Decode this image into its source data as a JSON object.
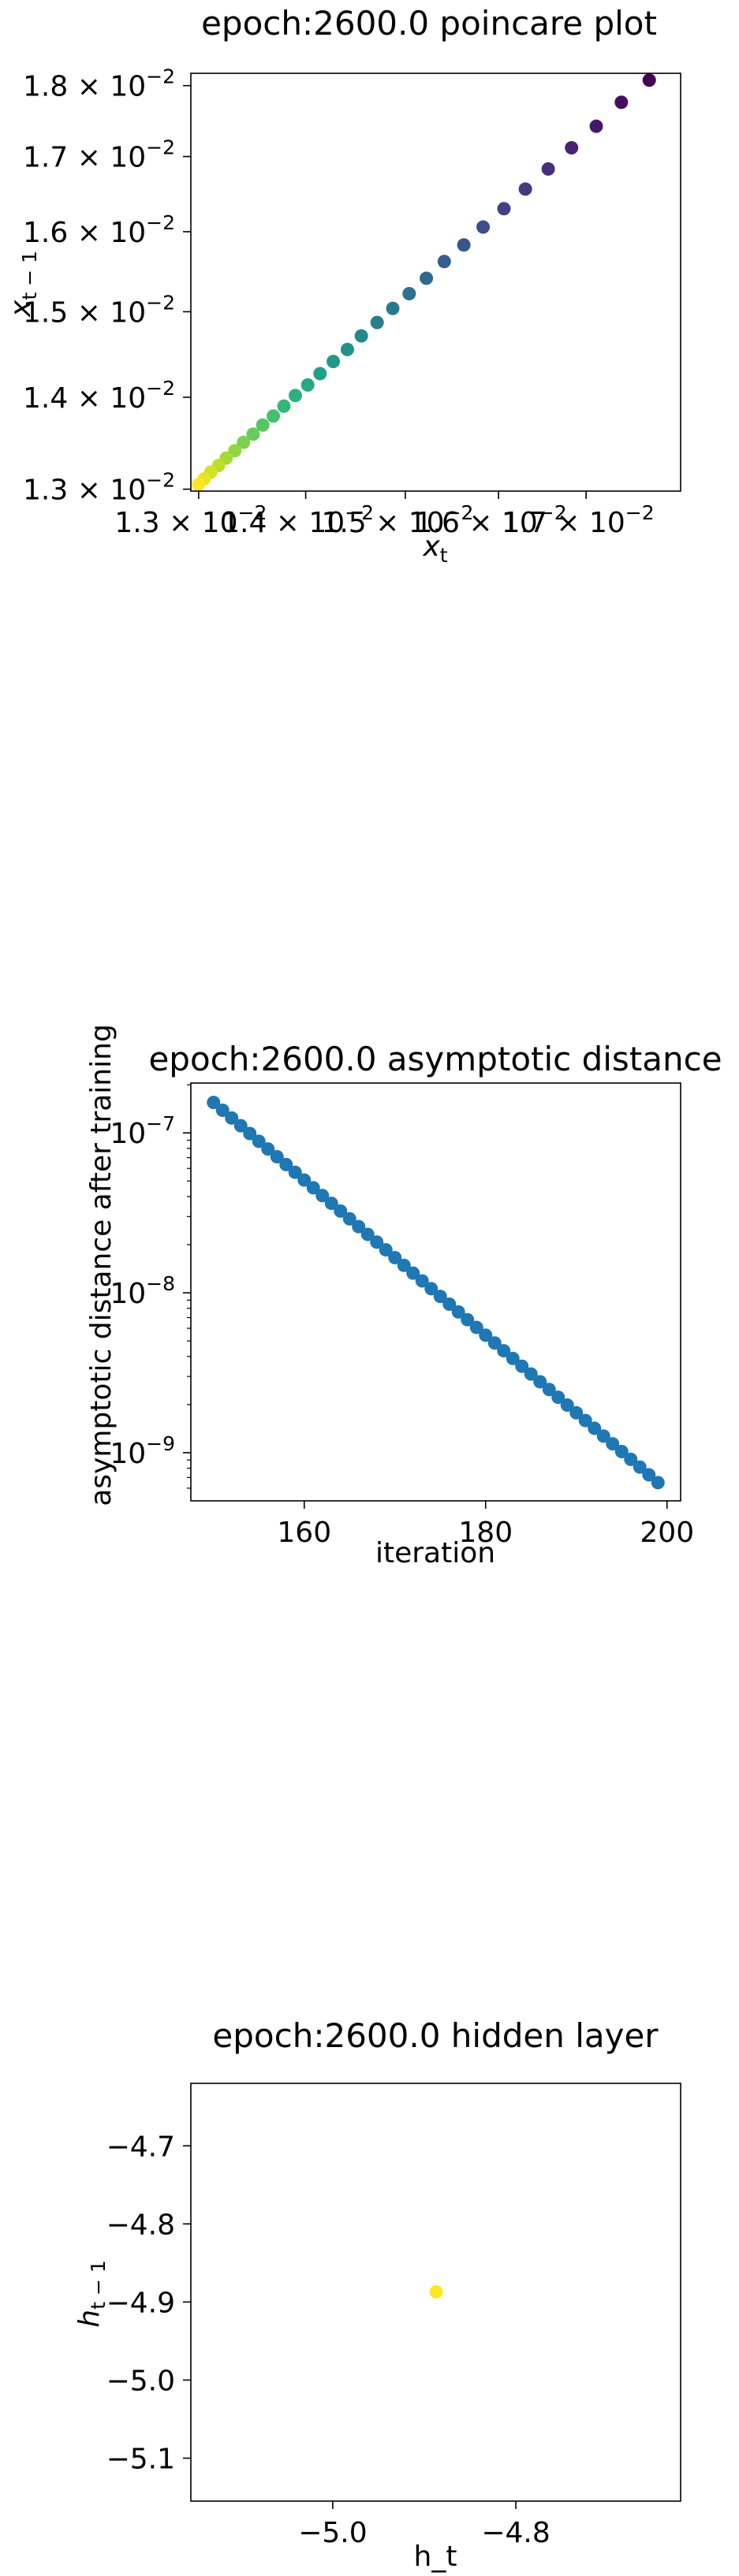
{
  "chart_data": [
    {
      "type": "scatter",
      "title": "epoch:2600.0 poincare plot",
      "xlabel": "x_t",
      "ylabel": "x_{t-1}",
      "xscale": "log",
      "yscale": "log",
      "xlim": [
        0.01293,
        0.01815
      ],
      "ylim": [
        0.01298,
        0.01818
      ],
      "colormap": "viridis",
      "xticks": [
        {
          "value": 0.013,
          "label": "1.3 × 10",
          "exp": "−2"
        },
        {
          "value": 0.014,
          "label": "1.4 × 10",
          "exp": "−2"
        },
        {
          "value": 0.015,
          "label": "1.5 × 10",
          "exp": "−2"
        },
        {
          "value": 0.016,
          "label": "1.6 × 10",
          "exp": "−2"
        },
        {
          "value": 0.017,
          "label": "1.7 × 10",
          "exp": "−2"
        }
      ],
      "yticks": [
        {
          "value": 0.013,
          "label": "1.3 × 10",
          "exp": "−2"
        },
        {
          "value": 0.014,
          "label": "1.4 × 10",
          "exp": "−2"
        },
        {
          "value": 0.015,
          "label": "1.5 × 10",
          "exp": "−2"
        },
        {
          "value": 0.016,
          "label": "1.6 × 10",
          "exp": "−2"
        },
        {
          "value": 0.017,
          "label": "1.7 × 10",
          "exp": "−2"
        },
        {
          "value": 0.018,
          "label": "1.8 × 10",
          "exp": "−2"
        }
      ],
      "x": [
        0.01776,
        0.01742,
        0.01712,
        0.01683,
        0.01656,
        0.0163,
        0.01606,
        0.01583,
        0.01562,
        0.01541,
        0.01522,
        0.01504,
        0.01487,
        0.01471,
        0.01455,
        0.01441,
        0.01427,
        0.01414,
        0.01402,
        0.0139,
        0.01379,
        0.01369,
        0.01359,
        0.0135,
        0.01341,
        0.01333,
        0.01325,
        0.01318,
        0.01311,
        0.01305,
        0.013
      ],
      "y": [
        0.01808,
        0.01776,
        0.01742,
        0.01712,
        0.01683,
        0.01656,
        0.0163,
        0.01606,
        0.01583,
        0.01562,
        0.01541,
        0.01522,
        0.01504,
        0.01487,
        0.01471,
        0.01455,
        0.01441,
        0.01427,
        0.01414,
        0.01402,
        0.0139,
        0.01379,
        0.01369,
        0.01359,
        0.0135,
        0.01341,
        0.01333,
        0.01325,
        0.01318,
        0.01311,
        0.01305
      ]
    },
    {
      "type": "scatter",
      "title": "epoch:2600.0 asymptotic distance",
      "xlabel": "iteration",
      "ylabel": "asymptotic distance after training",
      "yscale": "log",
      "xlim": [
        147.5,
        201.5
      ],
      "ylim": [
        5e-10,
        2.05e-07
      ],
      "color": "#1f77b4",
      "xticks": [
        {
          "value": 160,
          "label": "160"
        },
        {
          "value": 180,
          "label": "180"
        },
        {
          "value": 200,
          "label": "200"
        }
      ],
      "yticks": [
        {
          "value": 1e-07,
          "label": "10",
          "exp": "−7"
        },
        {
          "value": 1e-08,
          "label": "10",
          "exp": "−8"
        },
        {
          "value": 1e-09,
          "label": "10",
          "exp": "−9"
        }
      ],
      "x_start": 150,
      "x_end": 199,
      "y_start": 1.55e-07,
      "y_end": 6.5e-10
    },
    {
      "type": "scatter",
      "title": "epoch:2600.0 hidden layer",
      "xlabel": "h_t",
      "ylabel": "h_{t-1}",
      "xlim": [
        -5.155,
        -4.62
      ],
      "ylim": [
        -5.155,
        -4.62
      ],
      "color": "#fde725",
      "xticks": [
        {
          "value": -5.0,
          "label": "−5.0"
        },
        {
          "value": -4.8,
          "label": "−4.8"
        }
      ],
      "yticks": [
        {
          "value": -4.7,
          "label": "−4.7"
        },
        {
          "value": -4.8,
          "label": "−4.8"
        },
        {
          "value": -4.9,
          "label": "−4.9"
        },
        {
          "value": -5.0,
          "label": "−5.0"
        },
        {
          "value": -5.1,
          "label": "−5.1"
        }
      ],
      "x": [
        -4.887
      ],
      "y": [
        -4.887
      ]
    }
  ]
}
